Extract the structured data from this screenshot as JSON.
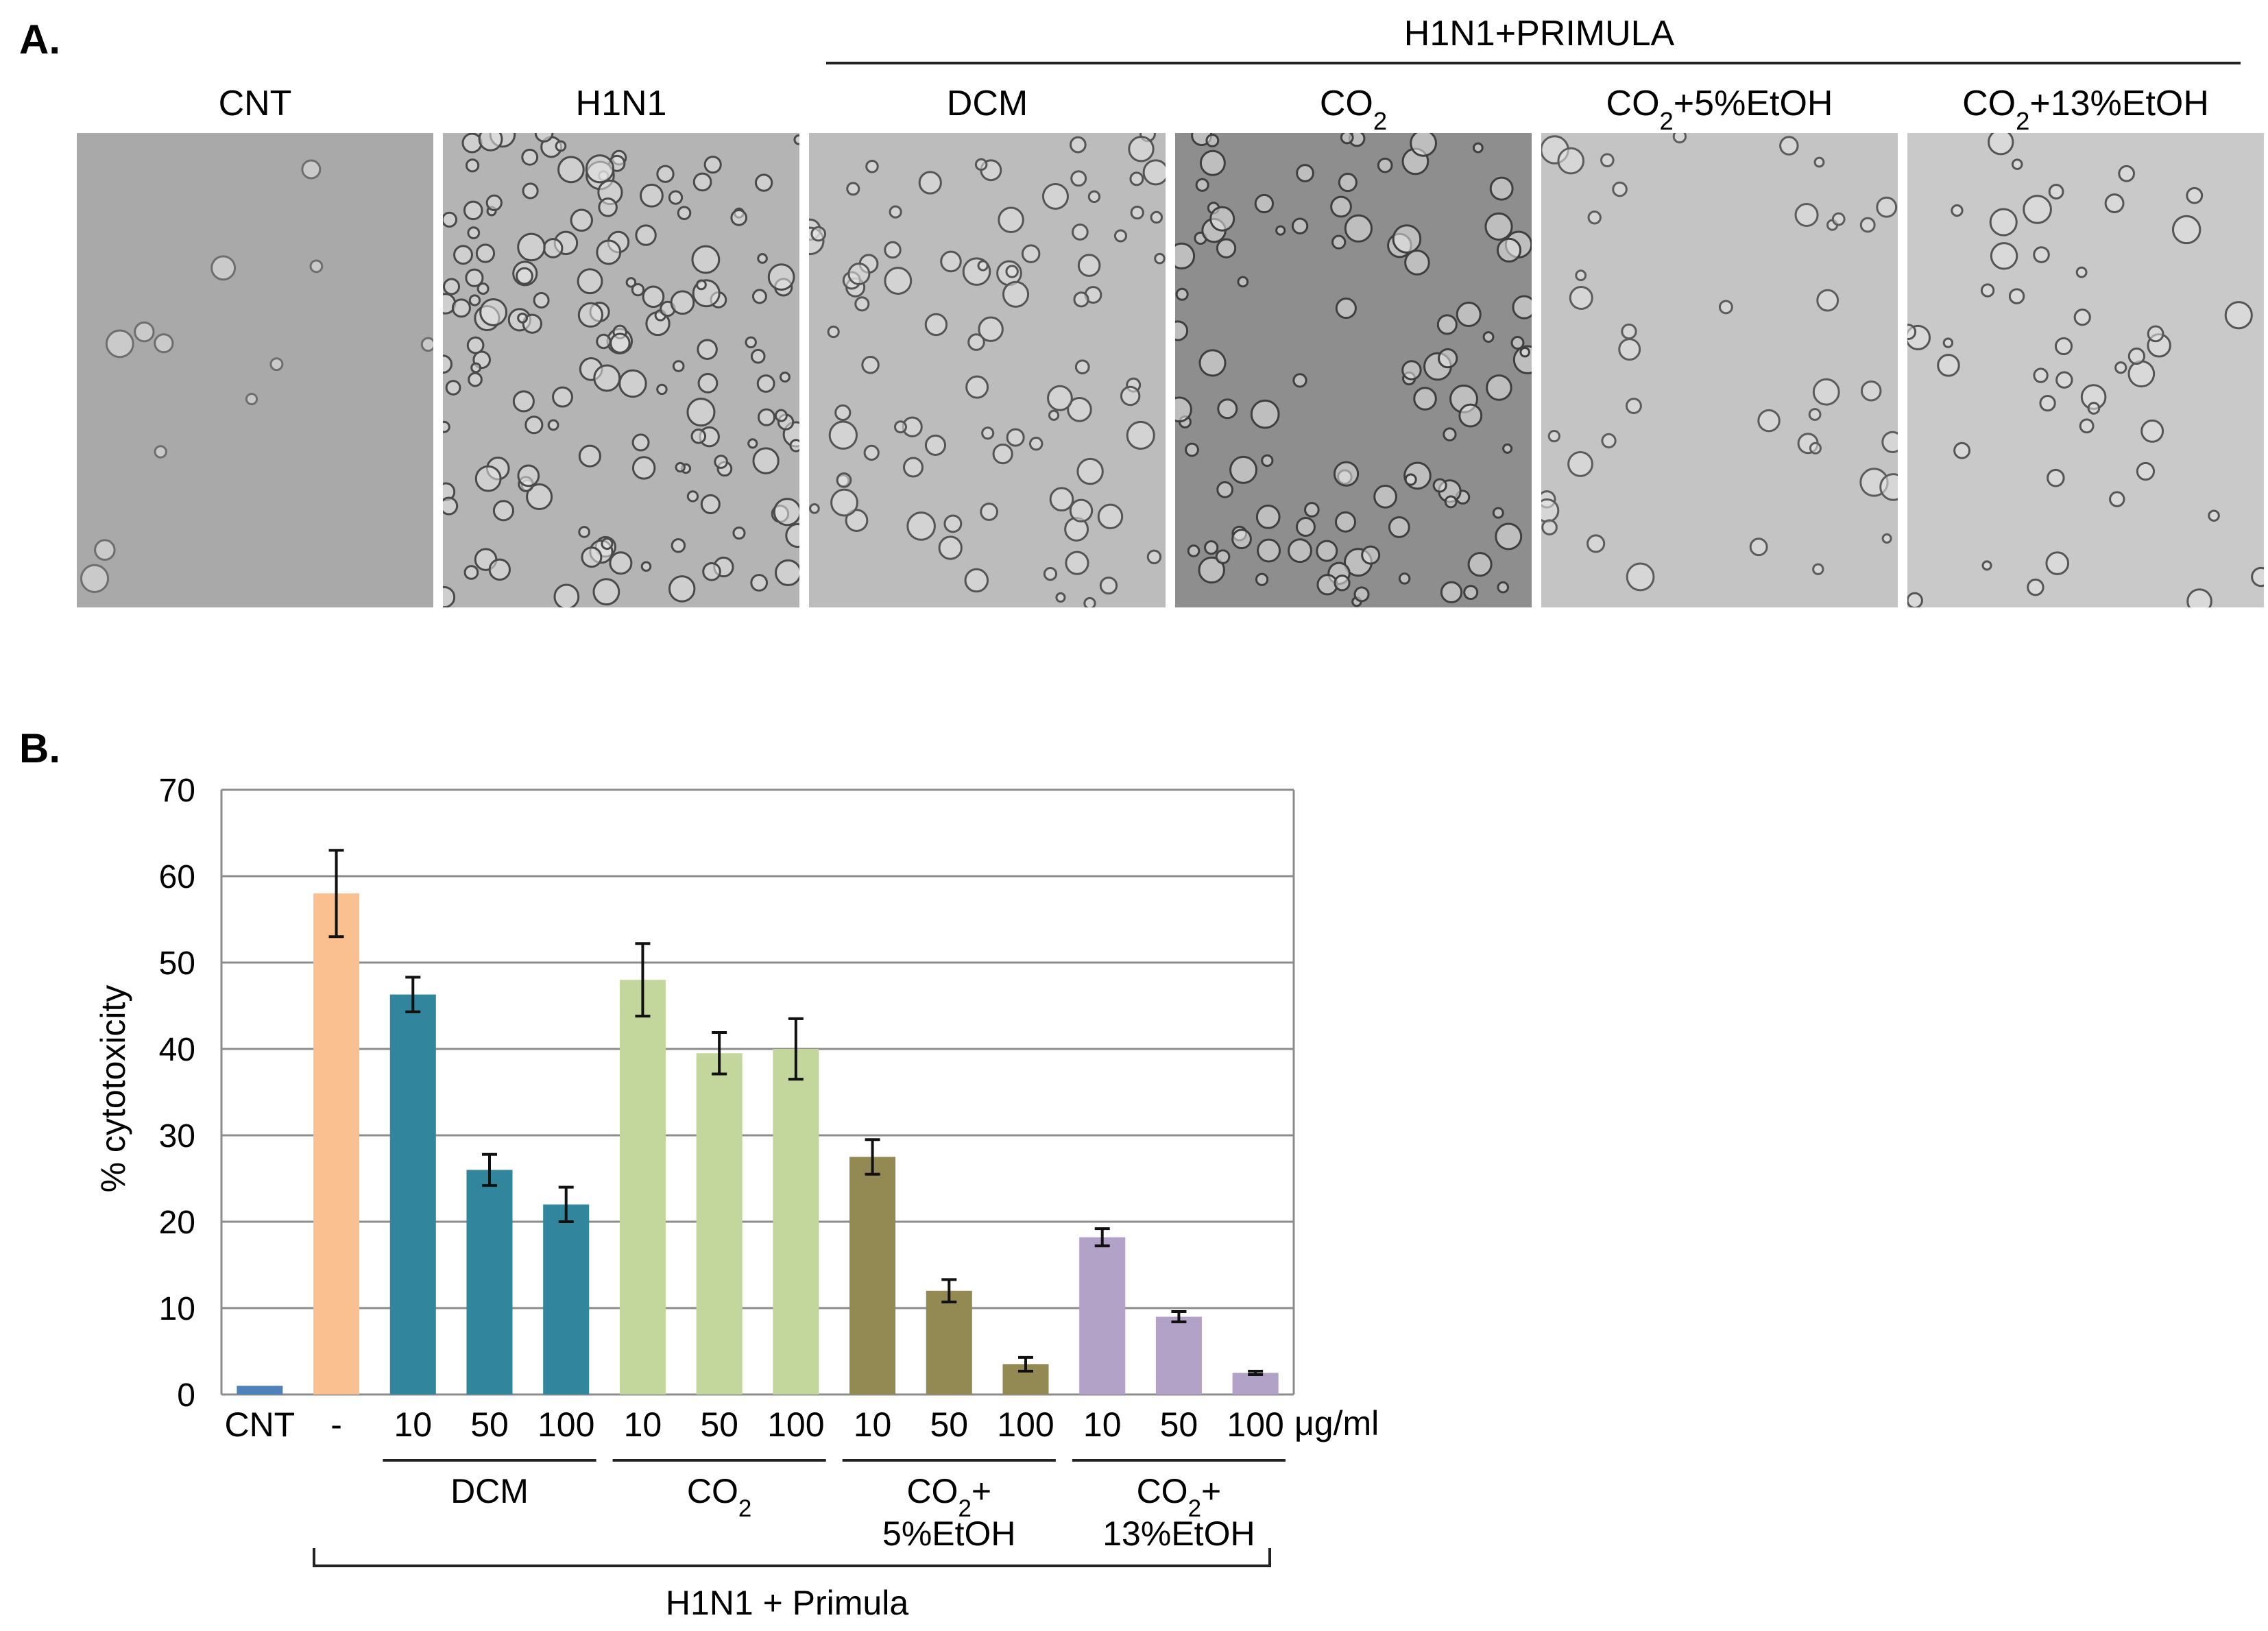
{
  "panelA": {
    "letter": "A.",
    "group_header": "H1N1+PRIMULA",
    "images": [
      {
        "label": "CNT",
        "base": "#a9a9a9",
        "density": 12,
        "dark": "#6e6e6e"
      },
      {
        "label": "H1N1",
        "base": "#b4b4b4",
        "density": 150,
        "dark": "#4a4a4a"
      },
      {
        "label": "DCM",
        "base": "#bcbcbc",
        "density": 85,
        "dark": "#555555"
      },
      {
        "label": "CO2",
        "base": "#8e8e8e",
        "density": 100,
        "dark": "#3f3f3f"
      },
      {
        "label": "CO2+5%EtOH",
        "base": "#c4c4c4",
        "density": 40,
        "dark": "#5c5c5c"
      },
      {
        "label": "CO2+13%EtOH",
        "base": "#c9c9c9",
        "density": 45,
        "dark": "#555555"
      }
    ]
  },
  "panelB": {
    "letter": "B.",
    "unit_label": "μg/ml",
    "group_labels": [
      "DCM",
      "CO2",
      "CO2+",
      "5%EtOH",
      "CO2+",
      "13%EtOH"
    ],
    "bracket_label": "H1N1 + Primula"
  },
  "chart_data": {
    "type": "bar",
    "ylabel": "% cytotoxicity",
    "ylim": [
      0,
      70
    ],
    "yticks": [
      0,
      10,
      20,
      30,
      40,
      50,
      60,
      70
    ],
    "grid": true,
    "categories": [
      "CNT",
      "-",
      "10",
      "50",
      "100",
      "10",
      "50",
      "100",
      "10",
      "50",
      "100",
      "10",
      "50",
      "100"
    ],
    "groups": [
      "",
      "",
      "DCM",
      "DCM",
      "DCM",
      "CO2",
      "CO2",
      "CO2",
      "CO2+5%EtOH",
      "CO2+5%EtOH",
      "CO2+5%EtOH",
      "CO2+13%EtOH",
      "CO2+13%EtOH",
      "CO2+13%EtOH"
    ],
    "values": [
      1,
      58,
      46.3,
      26,
      22,
      48,
      39.5,
      40,
      27.5,
      12,
      3.5,
      18.2,
      9,
      2.5
    ],
    "errors": [
      0,
      5,
      2,
      1.8,
      2,
      4.2,
      2.4,
      3.5,
      2,
      1.3,
      0.8,
      1,
      0.6,
      0.2
    ],
    "colors": [
      "#4f81bd",
      "#fac090",
      "#31859c",
      "#31859c",
      "#31859c",
      "#c3d69b",
      "#c3d69b",
      "#c3d69b",
      "#938953",
      "#938953",
      "#938953",
      "#b3a2c7",
      "#b3a2c7",
      "#b3a2c7"
    ]
  }
}
